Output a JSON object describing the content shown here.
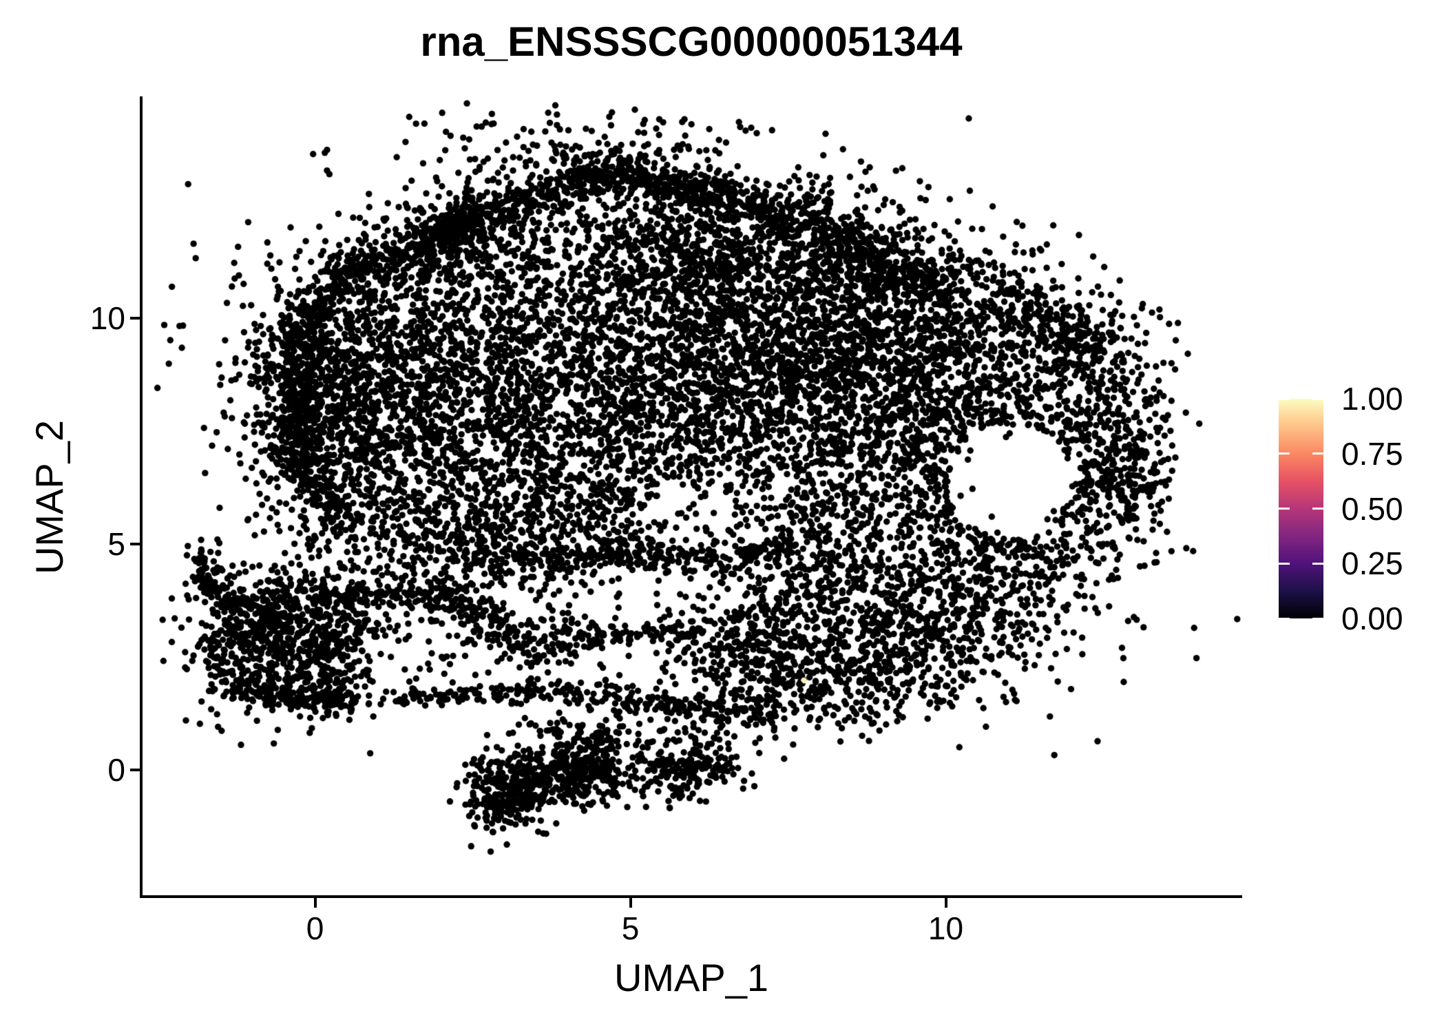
{
  "title": "rna_ENSSSCG00000051344",
  "x_axis": {
    "label": "UMAP_1",
    "ticks": [
      "0",
      "5",
      "10"
    ],
    "tick_values": [
      0,
      5,
      10
    ]
  },
  "y_axis": {
    "label": "UMAP_2",
    "ticks": [
      "0",
      "5",
      "10"
    ],
    "tick_values": [
      0,
      5,
      10
    ]
  },
  "colorbar": {
    "tick_labels": [
      "1.00",
      "0.75",
      "0.50",
      "0.25",
      "0.00"
    ],
    "tick_values": [
      1.0,
      0.75,
      0.5,
      0.25,
      0.0
    ],
    "palette_name": "magma",
    "gradient_stops": [
      {
        "stop": 0.0,
        "color": "#000004"
      },
      {
        "stop": 0.125,
        "color": "#1D1147"
      },
      {
        "stop": 0.25,
        "color": "#51127C"
      },
      {
        "stop": 0.375,
        "color": "#822681"
      },
      {
        "stop": 0.5,
        "color": "#B63679"
      },
      {
        "stop": 0.625,
        "color": "#E65164"
      },
      {
        "stop": 0.75,
        "color": "#FB8861"
      },
      {
        "stop": 0.875,
        "color": "#FEC287"
      },
      {
        "stop": 1.0,
        "color": "#FCFDBF"
      }
    ]
  },
  "chart_data": {
    "type": "scatter",
    "title": "rna_ENSSSCG00000051344",
    "xlabel": "UMAP_1",
    "ylabel": "UMAP_2",
    "xlim": [
      -2.8,
      14.7
    ],
    "ylim": [
      -2.8,
      14.9
    ],
    "x_ticks": [
      0,
      5,
      10
    ],
    "y_ticks": [
      0,
      5,
      10
    ],
    "grid": false,
    "legend_position": "right",
    "expression_range": [
      0.0,
      1.0
    ],
    "point_color": "#000000",
    "point_radius_px": 4.7,
    "n_points_approx": 16000,
    "description": "UMAP embedding of single cells colored by expression of rna_ENSSSCG00000051344; essentially all cells have expression 0 (black, magma scale). One high-expression cell (~1.0, pale yellow) near (7.75, 1.98).",
    "highlight_points": [
      {
        "x": 7.75,
        "y": 1.98,
        "value": 1.0,
        "color": "#F9F2B9"
      }
    ],
    "clusters": [
      {
        "t": "g",
        "x": 1.99,
        "y": 9.73,
        "sx": 1.53,
        "sy": 1.37,
        "n": 900
      },
      {
        "t": "g",
        "x": -0.05,
        "y": 8.05,
        "sx": 0.55,
        "sy": 1.25,
        "n": 380
      },
      {
        "t": "g",
        "x": 0.68,
        "y": 7.9,
        "sx": 0.87,
        "sy": 1.3,
        "n": 500
      },
      {
        "t": "g",
        "x": 2.65,
        "y": 7.29,
        "sx": 1.26,
        "sy": 1.52,
        "n": 650
      },
      {
        "t": "g",
        "x": 4.61,
        "y": 9.12,
        "sx": 1.64,
        "sy": 1.68,
        "n": 750
      },
      {
        "t": "g",
        "x": 6.47,
        "y": 9.88,
        "sx": 1.42,
        "sy": 1.37,
        "n": 700
      },
      {
        "t": "g",
        "x": 7.56,
        "y": 8.51,
        "sx": 1.26,
        "sy": 1.52,
        "n": 600
      },
      {
        "t": "g",
        "x": 5.38,
        "y": 7.13,
        "sx": 1.31,
        "sy": 1.37,
        "n": 450
      },
      {
        "t": "g",
        "x": 8.65,
        "y": 9.73,
        "sx": 1.15,
        "sy": 1.37,
        "n": 600
      },
      {
        "t": "g",
        "x": 9.2,
        "y": 7.59,
        "sx": 1.15,
        "sy": 1.45,
        "n": 480
      },
      {
        "t": "g",
        "x": 4.28,
        "y": 5.46,
        "sx": 1.64,
        "sy": 0.91,
        "n": 400
      },
      {
        "t": "g",
        "x": 1.77,
        "y": 5.46,
        "sx": 1.2,
        "sy": 1.07,
        "n": 420
      },
      {
        "t": "g",
        "x": 7.01,
        "y": 6.07,
        "sx": 0.98,
        "sy": 0.91,
        "n": 280
      },
      {
        "t": "g",
        "x": 7.56,
        "y": 11.55,
        "sx": 0.87,
        "sy": 0.84,
        "n": 330
      },
      {
        "t": "g",
        "x": 5.7,
        "y": 11.4,
        "sx": 0.76,
        "sy": 0.69,
        "n": 220
      },
      {
        "t": "b",
        "x1": 1.99,
        "y1": 11.94,
        "x2": 4.74,
        "y2": 13.23,
        "th": 0.2,
        "n": 330
      },
      {
        "t": "b",
        "x1": 4.74,
        "y1": 13.23,
        "x2": 6.58,
        "y2": 12.7,
        "th": 0.22,
        "n": 240
      },
      {
        "t": "b",
        "x1": 6.69,
        "y1": 12.62,
        "x2": 8.76,
        "y2": 11.55,
        "th": 0.24,
        "n": 220
      },
      {
        "t": "b",
        "x1": 8.76,
        "y1": 11.55,
        "x2": 10.07,
        "y2": 10.49,
        "th": 0.24,
        "n": 170
      },
      {
        "t": "b",
        "x1": 1.99,
        "y1": 11.94,
        "x2": 0.03,
        "y2": 10.56,
        "th": 0.22,
        "n": 210
      },
      {
        "t": "b",
        "x1": 0.03,
        "y1": 10.56,
        "x2": -0.27,
        "y2": 8.86,
        "th": 0.2,
        "n": 150
      },
      {
        "t": "b",
        "x1": -0.27,
        "y1": 8.86,
        "x2": -0.3,
        "y2": 6.98,
        "th": 0.18,
        "n": 160
      },
      {
        "t": "b",
        "x1": -0.3,
        "y1": 6.98,
        "x2": 0.46,
        "y2": 5.46,
        "th": 0.2,
        "n": 110
      },
      {
        "t": "b",
        "x1": 2.65,
        "y1": 4.62,
        "x2": 7.56,
        "y2": 4.92,
        "th": 0.2,
        "n": 260
      },
      {
        "t": "g",
        "x": 4.39,
        "y": 13.61,
        "sx": 1.53,
        "sy": 0.61,
        "n": 200
      },
      {
        "t": "g",
        "x": 4.28,
        "y": 12.01,
        "sx": 1.64,
        "sy": 0.84,
        "n": 240
      },
      {
        "t": "g",
        "x": 2.1,
        "y": 11.78,
        "sx": 0.49,
        "sy": 0.43,
        "n": 150
      },
      {
        "t": "g",
        "x": 10.07,
        "y": 9.42,
        "sx": 1.15,
        "sy": 1.3,
        "n": 520
      },
      {
        "t": "r",
        "x": 11.01,
        "y": 6.37,
        "rx": 1.29,
        "ry": 1.71,
        "th": 0.25,
        "n": 330
      },
      {
        "t": "g",
        "x": 12.69,
        "y": 7.36,
        "sx": 0.46,
        "sy": 1.19,
        "n": 230
      },
      {
        "t": "g",
        "x": 12.04,
        "y": 9.04,
        "sx": 0.71,
        "sy": 0.91,
        "n": 180
      },
      {
        "t": "b",
        "x1": 10.84,
        "y1": 10.64,
        "x2": 12.47,
        "y2": 9.27,
        "th": 0.31,
        "n": 150
      },
      {
        "t": "g",
        "x": 12.91,
        "y": 6.37,
        "sx": 0.31,
        "sy": 0.73,
        "n": 100
      },
      {
        "t": "g",
        "x": 10.51,
        "y": 4.24,
        "sx": 1.26,
        "sy": 0.99,
        "n": 420
      },
      {
        "t": "u",
        "x": 11.05,
        "y": 7.13,
        "rx": 2.07,
        "ry": 3.51,
        "n": 160
      },
      {
        "t": "g",
        "x": 7.67,
        "y": 3.48,
        "sx": 1.09,
        "sy": 1.07,
        "n": 520
      },
      {
        "t": "g",
        "x": 9.52,
        "y": 2.87,
        "sx": 0.87,
        "sy": 0.91,
        "n": 330
      },
      {
        "t": "g",
        "x": 6.8,
        "y": 2.26,
        "sx": 0.66,
        "sy": 0.69,
        "n": 200
      },
      {
        "t": "g",
        "x": 8.54,
        "y": 1.8,
        "sx": 0.76,
        "sy": 0.53,
        "n": 150
      },
      {
        "t": "b",
        "x1": 1.77,
        "y1": 4.01,
        "x2": 3.68,
        "y2": 2.56,
        "th": 0.22,
        "n": 200
      },
      {
        "t": "b",
        "x1": 3.96,
        "y1": 2.94,
        "x2": 6.03,
        "y2": 3.09,
        "th": 0.15,
        "n": 110
      },
      {
        "t": "b",
        "x1": 1.23,
        "y1": 1.57,
        "x2": 3.74,
        "y2": 1.72,
        "th": 0.11,
        "n": 100
      },
      {
        "t": "b",
        "x1": 3.74,
        "y1": 1.72,
        "x2": 7.34,
        "y2": 1.19,
        "th": 0.15,
        "n": 170
      },
      {
        "t": "u",
        "x": 3.74,
        "y": 2.87,
        "rx": 2.73,
        "ry": 1.37,
        "n": 130
      },
      {
        "t": "b",
        "x1": 0.03,
        "y1": 3.78,
        "x2": 1.77,
        "y2": 4.01,
        "th": 0.13,
        "n": 80
      },
      {
        "t": "g",
        "x": -0.41,
        "y": 2.87,
        "sx": 0.76,
        "sy": 0.84,
        "n": 600
      },
      {
        "t": "u",
        "x": -0.41,
        "y": 2.79,
        "rx": 1.4,
        "ry": 1.45,
        "n": 320
      },
      {
        "t": "g",
        "x": -1.77,
        "y": 4.47,
        "sx": 0.15,
        "sy": 0.3,
        "n": 50
      },
      {
        "t": "b",
        "x1": -1.72,
        "y1": 4.24,
        "x2": -1.01,
        "y2": 3.4,
        "th": 0.13,
        "n": 60
      },
      {
        "t": "b",
        "x1": -1.34,
        "y1": 1.8,
        "x2": 0.79,
        "y2": 1.46,
        "th": 0.13,
        "n": 140
      },
      {
        "t": "g",
        "x": 3.08,
        "y": -0.49,
        "sx": 0.33,
        "sy": 0.43,
        "n": 220
      },
      {
        "t": "b",
        "x1": 2.65,
        "y1": -0.91,
        "x2": 3.65,
        "y2": -0.03,
        "th": 0.17,
        "n": 110
      },
      {
        "t": "g",
        "x": 4.28,
        "y": 0.05,
        "sx": 0.39,
        "sy": 0.46,
        "n": 200
      },
      {
        "t": "b",
        "x1": 3.98,
        "y1": -0.52,
        "x2": 4.63,
        "y2": 0.85,
        "th": 0.16,
        "n": 90
      },
      {
        "t": "g",
        "x": 5.92,
        "y": 0.05,
        "sx": 0.46,
        "sy": 0.37,
        "n": 170
      },
      {
        "t": "u",
        "x": 4.5,
        "y": 0.27,
        "rx": 1.97,
        "ry": 1.19,
        "n": 150
      }
    ],
    "holes": [
      {
        "x": 11.01,
        "y": 6.37,
        "rx": 0.96,
        "ry": 1.25,
        "keep": 0.05
      },
      {
        "x": 6.25,
        "y": 5.69,
        "rx": 1.26,
        "ry": 0.84,
        "keep": 0.3
      },
      {
        "x": 5.38,
        "y": 3.78,
        "rx": 1.2,
        "ry": 0.61,
        "keep": 0.3
      }
    ]
  }
}
